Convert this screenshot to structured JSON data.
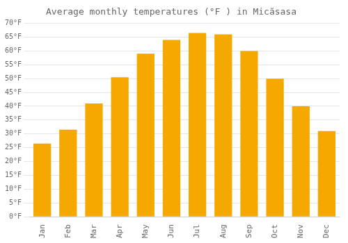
{
  "chart_data": {
    "type": "bar",
    "title": "Average monthly temperatures (°F ) in Micăsasa",
    "categories": [
      "Jan",
      "Feb",
      "Mar",
      "Apr",
      "May",
      "Jun",
      "Jul",
      "Aug",
      "Sep",
      "Oct",
      "Nov",
      "Dec"
    ],
    "values": [
      26.5,
      31.5,
      41.0,
      50.5,
      59.0,
      64.0,
      66.5,
      66.0,
      60.0,
      50.0,
      40.0,
      31.0
    ],
    "color": "#F5A800",
    "ylim": [
      0,
      70
    ],
    "yticks": [
      {
        "value": 0,
        "label": "0°F"
      },
      {
        "value": 5,
        "label": "5°F"
      },
      {
        "value": 10,
        "label": "10°F"
      },
      {
        "value": 15,
        "label": "15°F"
      },
      {
        "value": 20,
        "label": "20°F"
      },
      {
        "value": 25,
        "label": "25°F"
      },
      {
        "value": 30,
        "label": "30°F"
      },
      {
        "value": 35,
        "label": "35°F"
      },
      {
        "value": 40,
        "label": "40°F"
      },
      {
        "value": 45,
        "label": "45°F"
      },
      {
        "value": 50,
        "label": "50°F"
      },
      {
        "value": 55,
        "label": "55°F"
      },
      {
        "value": 60,
        "label": "60°F"
      },
      {
        "value": 65,
        "label": "65°F"
      },
      {
        "value": 70,
        "label": "70°F"
      }
    ],
    "grid": true
  }
}
